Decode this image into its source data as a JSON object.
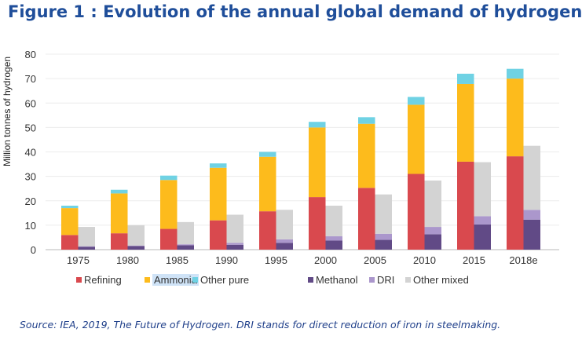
{
  "title": "Figure 1 : Evolution of the annual global demand of hydrogen",
  "source": "Source: IEA, 2019, The Future of Hydrogen. DRI stands for direct reduction of iron in steelmaking.",
  "chart_data": {
    "type": "bar",
    "subtype": "grouped stacked bar",
    "title": "",
    "xlabel": "",
    "ylabel": "Million tonnes of hydrogen",
    "ylim": [
      0,
      80
    ],
    "yticks": [
      0,
      10,
      20,
      30,
      40,
      50,
      60,
      70,
      80
    ],
    "grid": true,
    "legend_position": "bottom",
    "categories": [
      "1975",
      "1980",
      "1985",
      "1990",
      "1995",
      "2000",
      "2005",
      "2010",
      "2015",
      "2018e"
    ],
    "stacks": [
      {
        "stack": "pure",
        "series": [
          {
            "name": "Refining",
            "color": "#d9494e",
            "values": [
              6,
              6.7,
              8.5,
              12,
              15.7,
              21.5,
              25.3,
              31,
              36,
              38.2
            ]
          },
          {
            "name": "Ammonia",
            "color": "#fdbb1c",
            "values": [
              11,
              16.3,
              20,
              21.5,
              22.3,
              28.5,
              26.2,
              28.3,
              31.8,
              31.8
            ]
          },
          {
            "name": "Other pure",
            "color": "#6fd2e4",
            "values": [
              1,
              1.5,
              1.8,
              1.8,
              2,
              2.3,
              2.7,
              3.2,
              4.2,
              4
            ]
          }
        ]
      },
      {
        "stack": "mixed",
        "series": [
          {
            "name": "Methanol",
            "color": "#614a86",
            "values": [
              1.2,
              1.5,
              1.8,
              2,
              2.8,
              3.7,
              4,
              6.3,
              10.3,
              12.3
            ]
          },
          {
            "name": "DRI",
            "color": "#ab97cc",
            "values": [
              0.2,
              0.2,
              0.4,
              0.8,
              1.4,
              1.8,
              2.5,
              3,
              3.4,
              4
            ]
          },
          {
            "name": "Other mixed",
            "color": "#d3d3d3",
            "values": [
              7.9,
              8.3,
              9.1,
              11.5,
              12.1,
              12.5,
              16.1,
              19,
              22.1,
              26.2
            ]
          }
        ]
      }
    ],
    "legend_highlight": "Ammonia"
  }
}
